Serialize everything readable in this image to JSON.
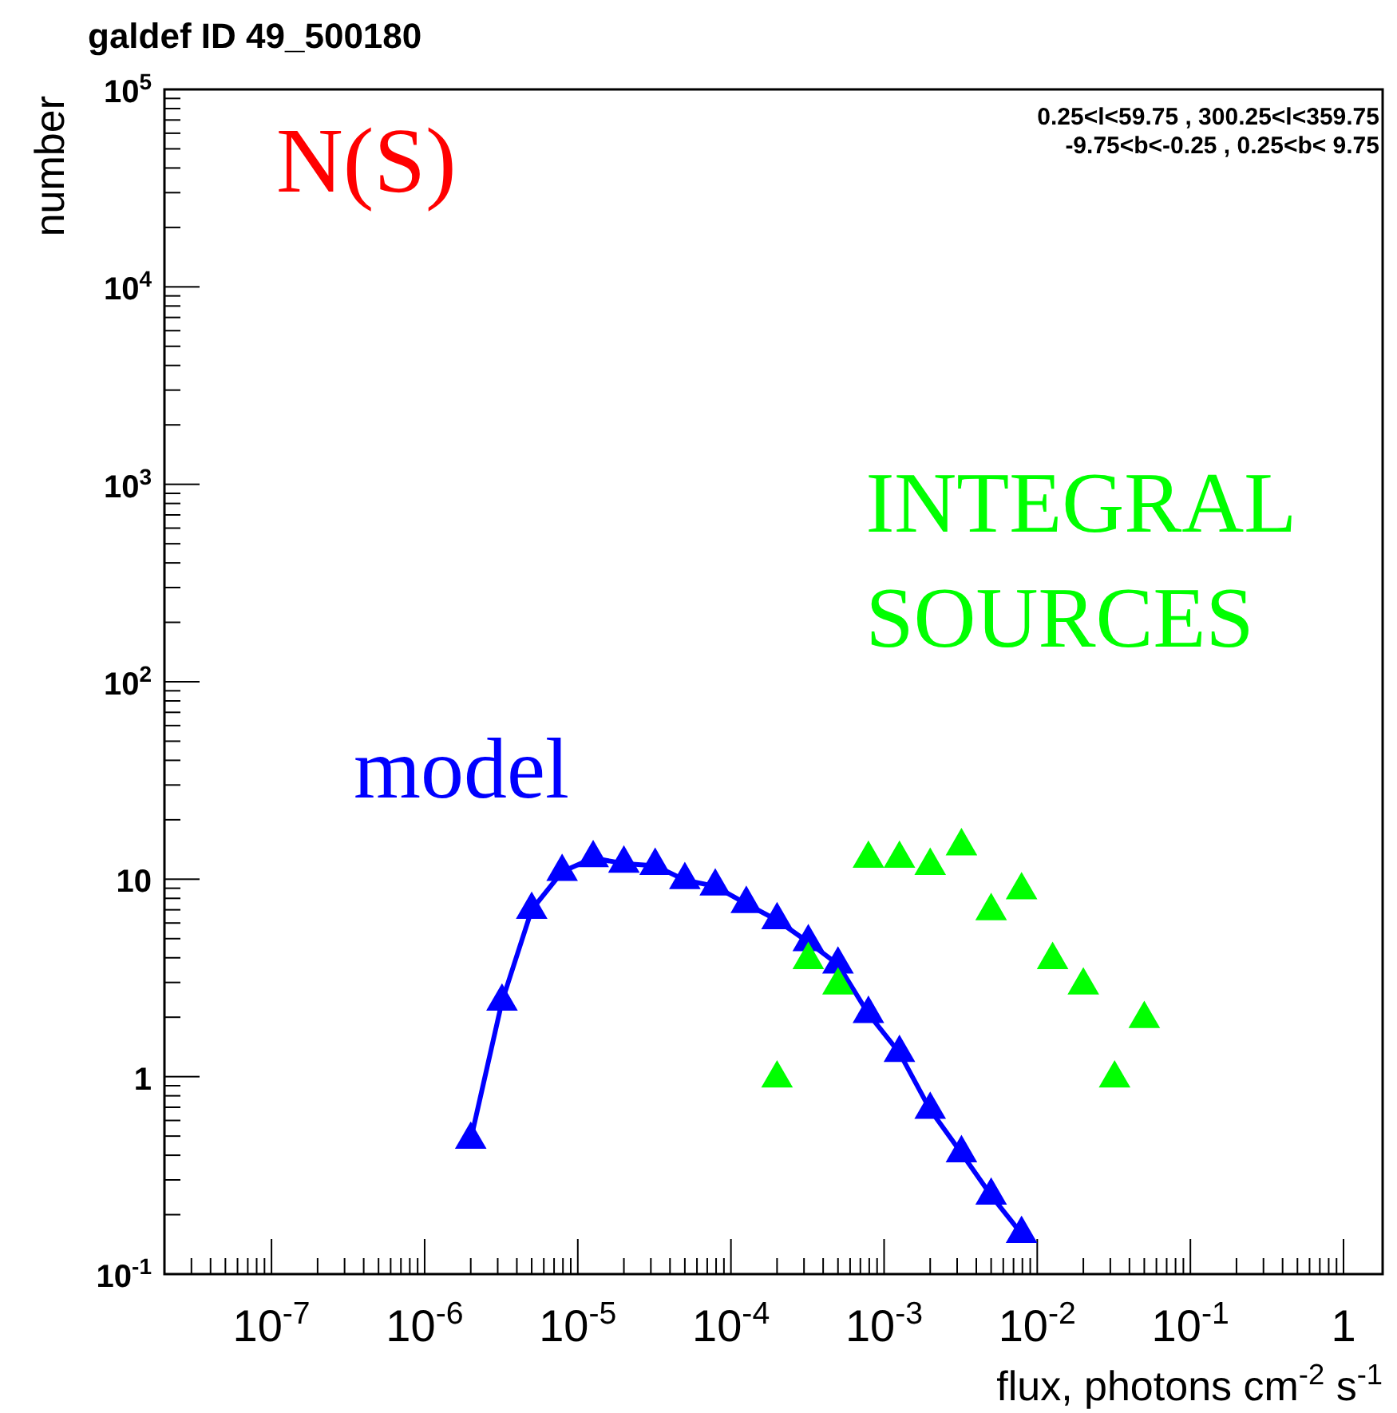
{
  "chart_data": {
    "type": "line",
    "title": "galdef ID 49_500180",
    "xlabel": "flux, photons  cm$^{-2}$ s$^{-1}$",
    "ylabel": "number",
    "log": "xy",
    "grid": false,
    "marker": "triangle",
    "line_style": "solid",
    "xlim": [
      2e-08,
      1.8
    ],
    "ylim": [
      0.1,
      100000
    ],
    "xticks": [
      {
        "value": 1e-07,
        "label": "10$^{-7}$"
      },
      {
        "value": 1e-06,
        "label": "10$^{-6}$"
      },
      {
        "value": 1e-05,
        "label": "10$^{-5}$"
      },
      {
        "value": 0.0001,
        "label": "10$^{-4}$"
      },
      {
        "value": 0.001,
        "label": "10$^{-3}$"
      },
      {
        "value": 0.01,
        "label": "10$^{-2}$"
      },
      {
        "value": 0.1,
        "label": "10$^{-1}$"
      },
      1
    ],
    "yticks": [
      {
        "value": 0.1,
        "label": "10$^{-1}$"
      },
      1,
      10,
      {
        "value": 100,
        "label": "10$^{2}$"
      },
      {
        "value": 1000,
        "label": "10$^{3}$"
      },
      {
        "value": 10000,
        "label": "10$^{4}$"
      },
      {
        "value": 100000,
        "label": "10$^{5}$"
      }
    ],
    "annotations": [
      "N(S)",
      "0.25<l<59.75 , 300.25<l<359.75",
      "-9.75<b<-0.25 ,  0.25<b< 9.75"
    ],
    "series": [
      {
        "name": "model",
        "type": "line",
        "color": "#0000ff",
        "x": [
          2e-06,
          3.2e-06,
          5e-06,
          7.9e-06,
          1.26e-05,
          2e-05,
          3.2e-05,
          5e-05,
          7.9e-05,
          0.000126,
          0.0002,
          0.00032,
          0.0005,
          0.00079,
          0.00126,
          0.002,
          0.0032,
          0.005,
          0.0079
        ],
        "values": [
          0.48,
          2.4,
          7.0,
          10.9,
          12.8,
          12.0,
          11.7,
          9.9,
          9.2,
          7.5,
          6.2,
          4.8,
          3.7,
          2.08,
          1.32,
          0.68,
          0.41,
          0.25,
          0.16
        ]
      },
      {
        "name": "INTEGRAL SOURCES",
        "type": "scatter",
        "color": "#00ff00",
        "x": [
          0.0002,
          0.00032,
          0.0005,
          0.00079,
          0.00126,
          0.002,
          0.0032,
          0.005,
          0.0079,
          0.0126,
          0.02,
          0.032,
          0.05
        ],
        "values": [
          0.98,
          3.9,
          2.9,
          12.7,
          12.7,
          11.7,
          14.7,
          6.9,
          8.8,
          3.9,
          2.9,
          0.98,
          1.96
        ]
      }
    ]
  }
}
